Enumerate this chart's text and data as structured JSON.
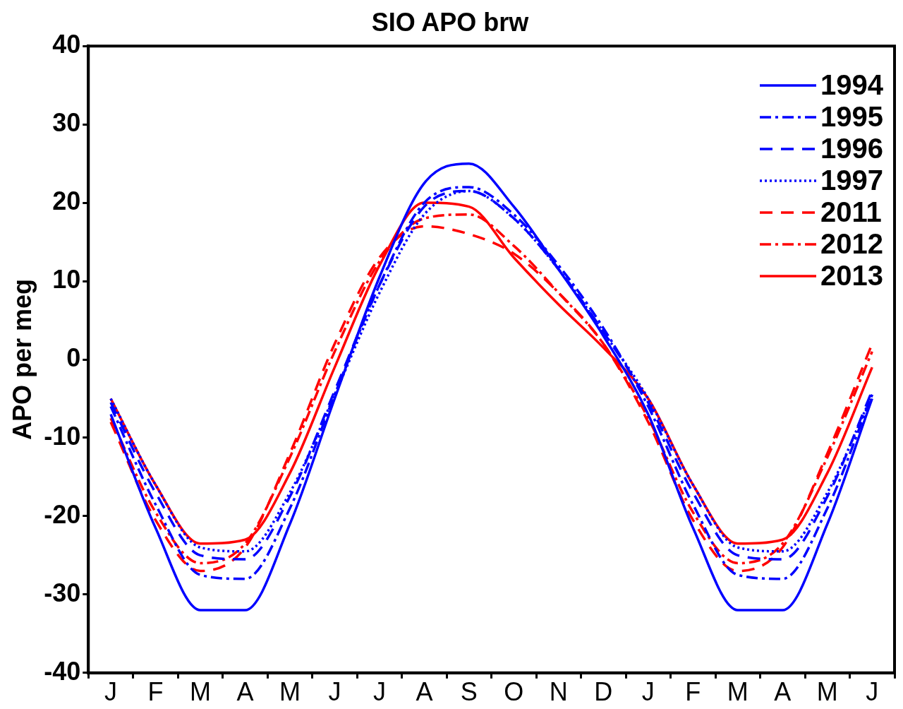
{
  "chart_data": {
    "type": "line",
    "title": "SIO APO brw",
    "ylabel": "APO per meg",
    "categories": [
      "J",
      "F",
      "M",
      "A",
      "M",
      "J",
      "J",
      "A",
      "S",
      "O",
      "N",
      "D",
      "J",
      "F",
      "M",
      "A",
      "M",
      "J"
    ],
    "ylim": [
      -40,
      40
    ],
    "yticks": [
      -40,
      -30,
      -20,
      -10,
      0,
      10,
      20,
      30,
      40
    ],
    "grid": false,
    "legend": "top right",
    "marker": "none",
    "series": [
      {
        "name": "1994",
        "color": "#0000ff",
        "line_style": "solid",
        "values": [
          -7,
          -21.5,
          -32,
          -32,
          -21,
          -5,
          10.5,
          22.5,
          25,
          19.5,
          11.5,
          3,
          -7,
          -21.5,
          -32,
          -32,
          -21,
          -5
        ]
      },
      {
        "name": "1995",
        "color": "#0000ff",
        "line_style": "dashdot",
        "values": [
          -6,
          -18.5,
          -27.5,
          -28,
          -19,
          -4.5,
          9.5,
          20,
          22,
          18.5,
          12,
          4,
          -6,
          -18.5,
          -27.5,
          -28,
          -19,
          -4.5
        ]
      },
      {
        "name": "1996",
        "color": "#0000ff",
        "line_style": "dashed",
        "values": [
          -5.5,
          -17,
          -25,
          -25.5,
          -17.5,
          -4,
          9.5,
          19.5,
          21.5,
          18,
          11.5,
          3.5,
          -5.5,
          -17,
          -25,
          -25.5,
          -17.5,
          -4
        ]
      },
      {
        "name": "1997",
        "color": "#0000ff",
        "line_style": "dotted",
        "values": [
          -5,
          -16,
          -24,
          -24.5,
          -17,
          -4.5,
          8.5,
          18.5,
          21.5,
          18,
          11.5,
          3.5,
          -5,
          -16,
          -24,
          -24.5,
          -17,
          -4.5
        ]
      },
      {
        "name": "2011",
        "color": "#ff0000",
        "line_style": "dashed",
        "values": [
          -8,
          -20.5,
          -27,
          -24,
          -12,
          2,
          13,
          17,
          16,
          13.5,
          8.5,
          2,
          -8,
          -20.5,
          -27,
          -24,
          -12,
          2
        ]
      },
      {
        "name": "2012",
        "color": "#ff0000",
        "line_style": "dashdot",
        "values": [
          -7.5,
          -19.5,
          -26,
          -23.5,
          -12.5,
          1,
          12.5,
          18,
          18.5,
          14.5,
          8.5,
          2,
          -7.5,
          -19.5,
          -26,
          -23.5,
          -12.5,
          1
        ]
      },
      {
        "name": "2013",
        "color": "#ff0000",
        "line_style": "solid",
        "values": [
          -5,
          -16,
          -23.5,
          -23,
          -14.5,
          -1,
          12,
          20,
          19.5,
          13,
          7,
          1.5,
          -5,
          -16,
          -23.5,
          -23,
          -14.5,
          -1
        ]
      }
    ]
  }
}
